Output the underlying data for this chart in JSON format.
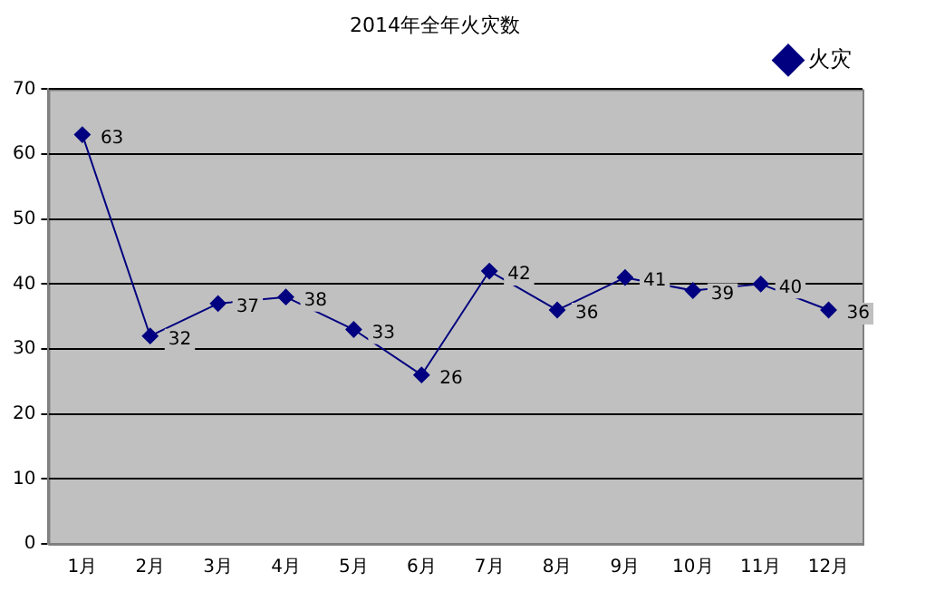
{
  "chart_data": {
    "type": "line",
    "title": "2014年全年火灾数",
    "categories": [
      "1月",
      "2月",
      "3月",
      "4月",
      "5月",
      "6月",
      "7月",
      "8月",
      "9月",
      "10月",
      "11月",
      "12月"
    ],
    "series": [
      {
        "name": "火灾",
        "color": "#000080",
        "values": [
          63,
          32,
          37,
          38,
          33,
          26,
          42,
          36,
          41,
          39,
          40,
          36
        ]
      }
    ],
    "ylim": [
      0,
      70
    ],
    "yticks": [
      0,
      10,
      20,
      30,
      40,
      50,
      60,
      70
    ],
    "grid": "y",
    "legend": "top right",
    "marker": "diamond",
    "line_style": "solid",
    "data_labels": true
  }
}
